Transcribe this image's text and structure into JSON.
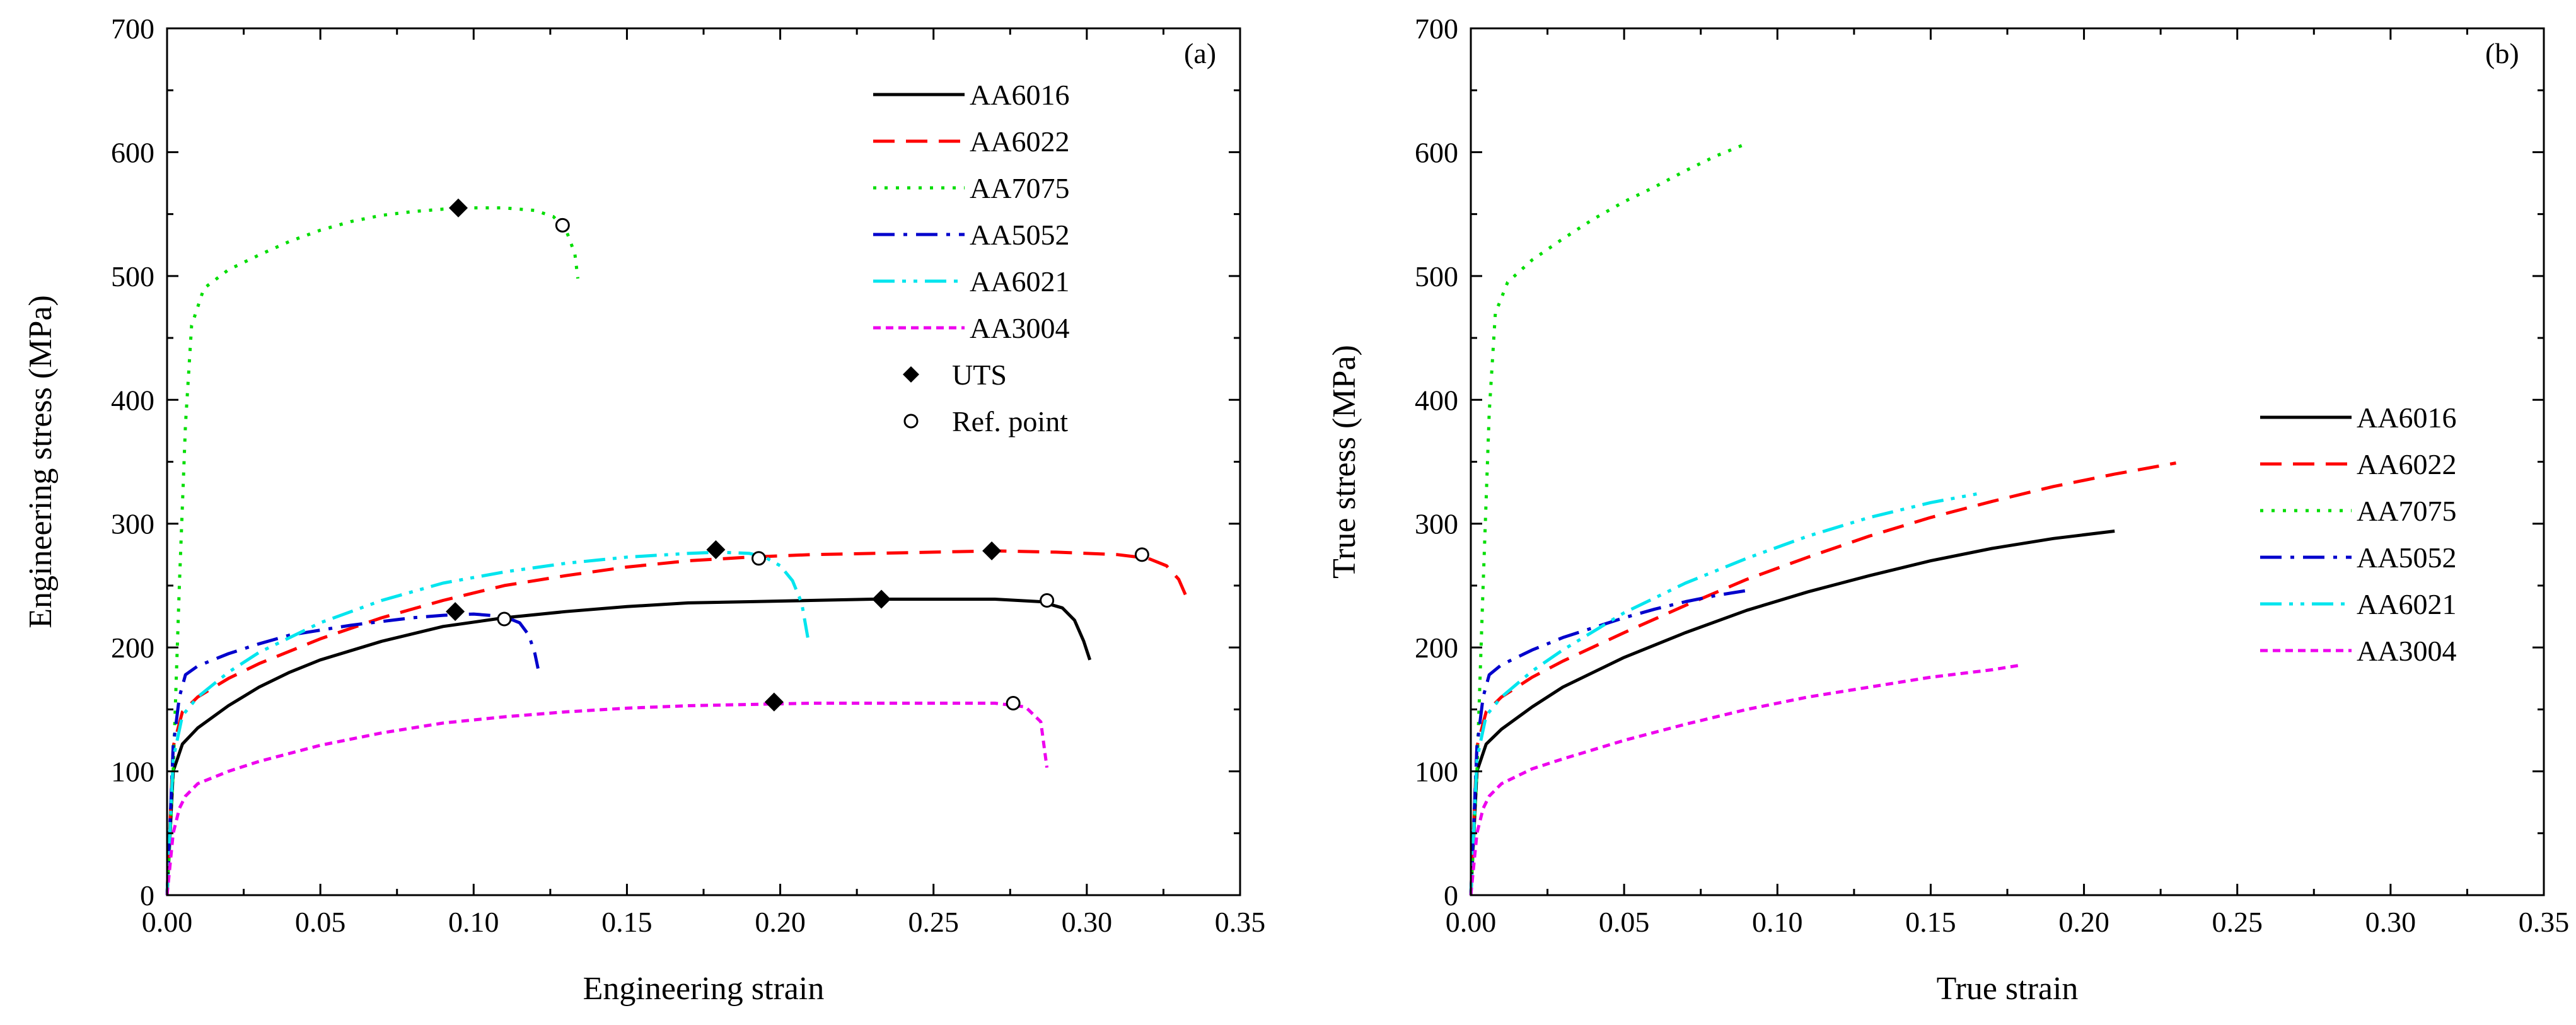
{
  "chart_data": [
    {
      "panel": "(a)",
      "type": "line",
      "xlabel": "Engineering strain",
      "ylabel": "Engineering stress (MPa)",
      "xlim": [
        0,
        0.35
      ],
      "ylim": [
        0,
        700
      ],
      "xticks": [
        "0.00",
        "0.05",
        "0.10",
        "0.15",
        "0.20",
        "0.25",
        "0.30",
        "0.35"
      ],
      "yticks": [
        "0",
        "100",
        "200",
        "300",
        "400",
        "500",
        "600",
        "700"
      ],
      "legend_position": "top-right",
      "series": [
        {
          "name": "AA6016",
          "color": "#000000",
          "dash": "solid",
          "x": [
            0,
            0.002,
            0.005,
            0.01,
            0.02,
            0.03,
            0.04,
            0.05,
            0.07,
            0.09,
            0.11,
            0.13,
            0.15,
            0.17,
            0.19,
            0.21,
            0.23,
            0.25,
            0.27,
            0.285,
            0.292,
            0.296,
            0.299,
            0.301
          ],
          "y": [
            0,
            100,
            122,
            135,
            153,
            168,
            180,
            190,
            205,
            217,
            224,
            229,
            233,
            236,
            237,
            238,
            239,
            239,
            239,
            237,
            232,
            222,
            205,
            190
          ]
        },
        {
          "name": "AA6022",
          "color": "#ff0000",
          "dash": "dashed",
          "x": [
            0,
            0.002,
            0.005,
            0.01,
            0.02,
            0.03,
            0.05,
            0.07,
            0.09,
            0.11,
            0.13,
            0.15,
            0.17,
            0.19,
            0.21,
            0.23,
            0.25,
            0.27,
            0.29,
            0.31,
            0.32,
            0.326,
            0.33,
            0.333
          ],
          "y": [
            0,
            120,
            148,
            160,
            175,
            187,
            207,
            224,
            238,
            250,
            258,
            265,
            270,
            273,
            275,
            276,
            277,
            278,
            277,
            275,
            272,
            266,
            255,
            238
          ]
        },
        {
          "name": "AA7075",
          "color": "#00dd00",
          "dash": "dotted",
          "x": [
            0,
            0.002,
            0.004,
            0.006,
            0.008,
            0.012,
            0.02,
            0.03,
            0.04,
            0.05,
            0.06,
            0.07,
            0.08,
            0.09,
            0.1,
            0.11,
            0.12,
            0.126,
            0.13,
            0.133,
            0.134
          ],
          "y": [
            0,
            100,
            250,
            380,
            460,
            490,
            505,
            517,
            528,
            537,
            544,
            549,
            552,
            554,
            555,
            555,
            553,
            548,
            538,
            518,
            498
          ]
        },
        {
          "name": "AA5052",
          "color": "#0000cc",
          "dash": "dashdot",
          "x": [
            0,
            0.002,
            0.004,
            0.006,
            0.01,
            0.02,
            0.03,
            0.04,
            0.05,
            0.06,
            0.07,
            0.08,
            0.09,
            0.1,
            0.11,
            0.115,
            0.118,
            0.12,
            0.121
          ],
          "y": [
            0,
            120,
            160,
            178,
            185,
            195,
            203,
            210,
            214,
            218,
            221,
            224,
            226,
            227,
            225,
            220,
            210,
            195,
            183
          ]
        },
        {
          "name": "AA6021",
          "color": "#00e5ee",
          "dash": "dashdotdot",
          "x": [
            0,
            0.002,
            0.005,
            0.01,
            0.02,
            0.03,
            0.05,
            0.07,
            0.09,
            0.11,
            0.13,
            0.15,
            0.17,
            0.18,
            0.19,
            0.195,
            0.2,
            0.204,
            0.207,
            0.209
          ],
          "y": [
            0,
            110,
            145,
            160,
            180,
            196,
            220,
            238,
            252,
            261,
            268,
            273,
            276,
            277,
            276,
            273,
            266,
            254,
            236,
            208
          ]
        },
        {
          "name": "AA3004",
          "color": "#ee00ee",
          "dash": "shortdash",
          "x": [
            0,
            0.002,
            0.004,
            0.006,
            0.01,
            0.02,
            0.03,
            0.05,
            0.07,
            0.09,
            0.11,
            0.13,
            0.15,
            0.17,
            0.19,
            0.21,
            0.23,
            0.25,
            0.27,
            0.28,
            0.285,
            0.287
          ],
          "y": [
            0,
            50,
            70,
            80,
            90,
            100,
            108,
            121,
            131,
            139,
            144,
            148,
            151,
            153,
            154,
            155,
            155,
            155,
            155,
            152,
            140,
            103
          ]
        }
      ],
      "uts_points": {
        "name": "UTS",
        "marker": "filled-diamond",
        "x": [
          0.095,
          0.179,
          0.233,
          0.269,
          0.198,
          0.094
        ],
        "y": [
          555,
          279,
          239,
          278,
          156,
          229
        ]
      },
      "ref_points": {
        "name": "Ref. point",
        "marker": "open-circle",
        "x": [
          0.129,
          0.193,
          0.287,
          0.318,
          0.276,
          0.11
        ],
        "y": [
          541,
          272,
          238,
          275,
          155,
          223
        ]
      }
    },
    {
      "panel": "(b)",
      "type": "line",
      "xlabel": "True strain",
      "ylabel": "True stress (MPa)",
      "xlim": [
        0,
        0.35
      ],
      "ylim": [
        0,
        700
      ],
      "xticks": [
        "0.00",
        "0.05",
        "0.10",
        "0.15",
        "0.20",
        "0.25",
        "0.30",
        "0.35"
      ],
      "yticks": [
        "0",
        "100",
        "200",
        "300",
        "400",
        "500",
        "600",
        "700"
      ],
      "legend_position": "center-right",
      "series": [
        {
          "name": "AA6016",
          "color": "#000000",
          "dash": "solid",
          "x": [
            0,
            0.002,
            0.005,
            0.01,
            0.02,
            0.03,
            0.05,
            0.07,
            0.09,
            0.11,
            0.13,
            0.15,
            0.17,
            0.19,
            0.21
          ],
          "y": [
            0,
            100,
            122,
            134,
            152,
            168,
            192,
            212,
            230,
            245,
            258,
            270,
            280,
            288,
            294
          ]
        },
        {
          "name": "AA6022",
          "color": "#ff0000",
          "dash": "dashed",
          "x": [
            0,
            0.002,
            0.005,
            0.01,
            0.02,
            0.03,
            0.05,
            0.07,
            0.09,
            0.11,
            0.13,
            0.15,
            0.17,
            0.19,
            0.21,
            0.23
          ],
          "y": [
            0,
            120,
            148,
            160,
            176,
            189,
            212,
            234,
            255,
            273,
            290,
            305,
            318,
            330,
            340,
            349
          ]
        },
        {
          "name": "AA7075",
          "color": "#00dd00",
          "dash": "dotted",
          "x": [
            0,
            0.002,
            0.004,
            0.006,
            0.008,
            0.012,
            0.02,
            0.03,
            0.04,
            0.05,
            0.06,
            0.07,
            0.08,
            0.09
          ],
          "y": [
            0,
            100,
            250,
            390,
            470,
            495,
            513,
            530,
            546,
            560,
            572,
            585,
            597,
            607
          ]
        },
        {
          "name": "AA5052",
          "color": "#0000cc",
          "dash": "dashdot",
          "x": [
            0,
            0.002,
            0.004,
            0.006,
            0.01,
            0.02,
            0.03,
            0.04,
            0.05,
            0.06,
            0.07,
            0.08,
            0.09
          ],
          "y": [
            0,
            120,
            160,
            178,
            186,
            198,
            208,
            216,
            224,
            231,
            237,
            242,
            246
          ]
        },
        {
          "name": "AA6021",
          "color": "#00e5ee",
          "dash": "dashdotdot",
          "x": [
            0,
            0.002,
            0.005,
            0.01,
            0.02,
            0.03,
            0.05,
            0.07,
            0.09,
            0.11,
            0.13,
            0.15,
            0.165
          ],
          "y": [
            0,
            110,
            145,
            160,
            181,
            198,
            228,
            252,
            272,
            290,
            305,
            317,
            324
          ]
        },
        {
          "name": "AA3004",
          "color": "#ee00ee",
          "dash": "shortdash",
          "x": [
            0,
            0.002,
            0.004,
            0.006,
            0.01,
            0.02,
            0.03,
            0.05,
            0.07,
            0.09,
            0.11,
            0.13,
            0.15,
            0.17,
            0.18
          ],
          "y": [
            0,
            50,
            70,
            80,
            90,
            102,
            110,
            125,
            138,
            150,
            160,
            168,
            176,
            182,
            186
          ]
        }
      ]
    }
  ]
}
